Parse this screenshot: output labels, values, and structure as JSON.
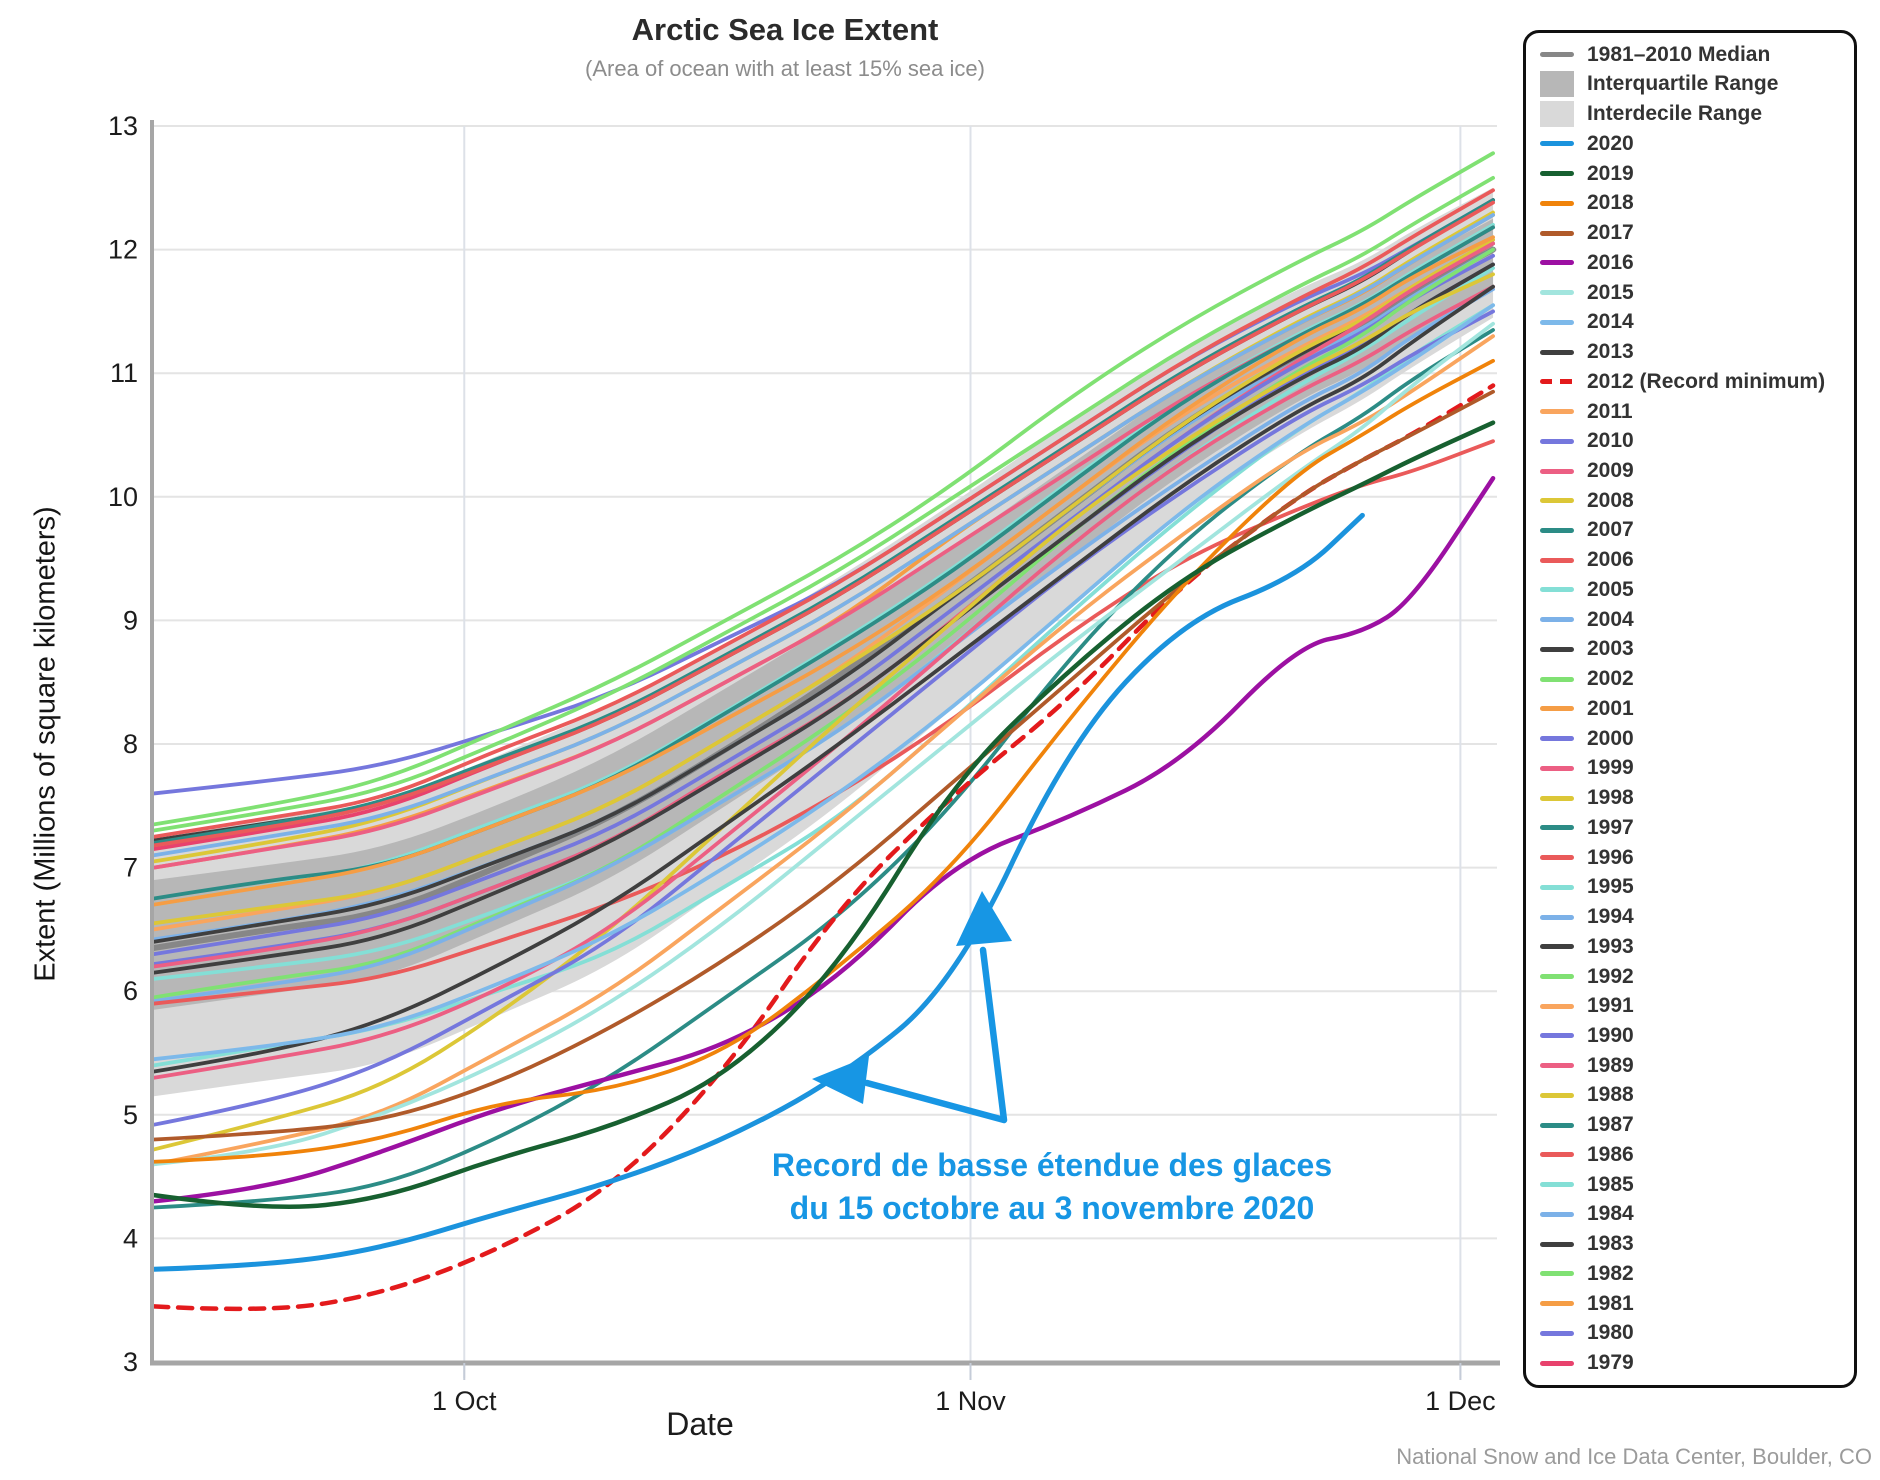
{
  "header": {
    "title": "Arctic Sea Ice Extent",
    "subtitle": "(Area of ocean with at least 15% sea ice)"
  },
  "axes": {
    "y_label": "Extent (Millions of square kilometers)",
    "x_label": "Date"
  },
  "footer": {
    "source": "National Snow and Ice Data Center, Boulder, CO"
  },
  "annotation": {
    "line1": "Record de basse étendue des glaces",
    "line2": "du 15 octobre au 3 novembre 2020",
    "color": "#1796e4"
  },
  "legend": {
    "header_items": [
      {
        "label": "1981–2010 Median",
        "swatch": "line",
        "color": "#878787"
      },
      {
        "label": "Interquartile Range",
        "swatch": "rect",
        "color": "#b7b7b7"
      },
      {
        "label": "Interdecile Range",
        "swatch": "rect",
        "color": "#d9d9d9"
      }
    ]
  },
  "chart_data": {
    "type": "line",
    "title": "Arctic Sea Ice Extent",
    "xlabel": "Date",
    "ylabel": "Extent (Millions of square kilometers)",
    "ylim": [
      3,
      13
    ],
    "y_ticks": [
      13,
      12,
      11,
      10,
      9,
      8,
      7,
      6,
      5,
      4,
      3
    ],
    "x_ticks": [
      {
        "label": "1 Oct",
        "day": 19
      },
      {
        "label": "1 Nov",
        "day": 50
      },
      {
        "label": "1 Dec",
        "day": 80
      }
    ],
    "x_unit": "days since 12 Sep",
    "days": [
      0,
      7,
      14,
      21,
      28,
      35,
      42,
      49,
      56,
      63,
      70,
      74,
      77,
      82
    ],
    "bands": {
      "interdecile": {
        "label": "Interdecile Range",
        "color": "#d9d9d9",
        "lo": [
          5.15,
          5.28,
          5.4,
          5.8,
          6.2,
          6.85,
          7.5,
          8.3,
          9.1,
          9.9,
          10.5,
          10.78,
          11.05,
          11.45
        ],
        "hi": [
          7.25,
          7.4,
          7.52,
          7.9,
          8.3,
          8.8,
          9.35,
          9.95,
          10.6,
          11.2,
          11.68,
          11.9,
          12.15,
          12.5
        ]
      },
      "interquartile": {
        "label": "Interquartile Range",
        "color": "#b7b7b7",
        "lo": [
          5.85,
          5.98,
          6.1,
          6.5,
          6.9,
          7.5,
          8.1,
          8.8,
          9.5,
          10.2,
          10.78,
          11.02,
          11.3,
          11.7
        ],
        "hi": [
          6.9,
          7.02,
          7.15,
          7.5,
          7.9,
          8.45,
          9.0,
          9.6,
          10.25,
          10.9,
          11.42,
          11.66,
          11.9,
          12.25
        ]
      }
    },
    "median": {
      "label": "1981–2010 Median",
      "color": "#878787",
      "width": 6,
      "values": [
        6.35,
        6.5,
        6.62,
        7.0,
        7.4,
        7.95,
        8.55,
        9.2,
        9.9,
        10.6,
        11.15,
        11.4,
        11.65,
        12.0
      ]
    },
    "series": [
      {
        "year": "2020",
        "label": "2020",
        "color": "#1b93dd",
        "width": 5,
        "values": [
          3.75,
          3.78,
          3.92,
          4.2,
          4.45,
          4.8,
          5.3,
          6.05,
          8.0,
          9.0,
          9.35,
          9.85,
          null,
          null
        ]
      },
      {
        "year": "2019",
        "label": "2019",
        "color": "#176030",
        "width": 4.5,
        "values": [
          4.35,
          4.22,
          4.32,
          4.65,
          4.9,
          5.3,
          6.2,
          7.7,
          8.6,
          9.35,
          9.85,
          10.1,
          10.3,
          10.6
        ]
      },
      {
        "year": "2018",
        "label": "2018",
        "color": "#f0830a",
        "values": [
          4.62,
          4.66,
          4.8,
          5.1,
          5.2,
          5.5,
          6.2,
          7.0,
          8.2,
          9.3,
          10.2,
          10.5,
          10.75,
          11.1
        ]
      },
      {
        "year": "2017",
        "label": "2017",
        "color": "#b05a2a",
        "values": [
          4.8,
          4.85,
          4.95,
          5.25,
          5.7,
          6.25,
          6.9,
          7.7,
          8.5,
          9.3,
          10.0,
          10.3,
          10.5,
          10.85
        ]
      },
      {
        "year": "2016",
        "label": "2016",
        "color": "#9c10a2",
        "width": 4.5,
        "values": [
          4.3,
          4.4,
          4.7,
          5.05,
          5.3,
          5.55,
          6.1,
          7.05,
          7.4,
          7.85,
          8.8,
          8.9,
          9.15,
          10.15
        ]
      },
      {
        "year": "2015",
        "label": "2015",
        "color": "#a2e5de",
        "values": [
          4.6,
          4.7,
          5.0,
          5.4,
          5.9,
          6.55,
          7.3,
          8.05,
          8.8,
          9.5,
          10.2,
          10.55,
          10.9,
          11.4
        ]
      },
      {
        "year": "2014",
        "label": "2014",
        "color": "#7db9ea",
        "values": [
          5.45,
          5.55,
          5.7,
          6.05,
          6.45,
          7.0,
          7.6,
          8.3,
          9.1,
          9.9,
          10.55,
          10.85,
          11.1,
          11.55
        ]
      },
      {
        "year": "2013",
        "label": "2013",
        "color": "#3f3f3f",
        "values": [
          5.35,
          5.5,
          5.75,
          6.2,
          6.7,
          7.35,
          8.0,
          8.7,
          9.4,
          10.1,
          10.7,
          10.95,
          11.25,
          11.7
        ]
      },
      {
        "year": "2012",
        "label": "2012 (Record minimum)",
        "color": "#e31a1c",
        "dash": "14 10",
        "width": 4.5,
        "values": [
          3.45,
          3.4,
          3.55,
          3.9,
          4.4,
          5.35,
          6.7,
          7.6,
          8.35,
          9.3,
          10.0,
          10.3,
          10.5,
          10.9
        ]
      },
      {
        "year": "2011",
        "label": "2011",
        "color": "#f9a55e",
        "values": [
          4.6,
          4.78,
          5.0,
          5.5,
          6.0,
          6.7,
          7.4,
          8.2,
          9.0,
          9.7,
          10.35,
          10.6,
          10.85,
          11.3
        ]
      },
      {
        "year": "2010",
        "label": "2010",
        "color": "#7577dd",
        "values": [
          4.92,
          5.1,
          5.4,
          5.9,
          6.4,
          7.15,
          7.9,
          8.65,
          9.4,
          10.05,
          10.65,
          10.9,
          11.15,
          11.5
        ]
      },
      {
        "year": "2009",
        "label": "2009",
        "color": "#ec5f83",
        "values": [
          5.3,
          5.45,
          5.62,
          6.0,
          6.5,
          7.25,
          8.0,
          8.8,
          9.6,
          10.3,
          10.85,
          11.1,
          11.35,
          11.7
        ]
      },
      {
        "year": "2008",
        "label": "2008",
        "color": "#dcc737",
        "values": [
          4.72,
          4.95,
          5.22,
          5.8,
          6.5,
          7.35,
          8.2,
          9.0,
          9.8,
          10.45,
          11.0,
          11.25,
          11.5,
          11.8
        ]
      },
      {
        "year": "2007",
        "label": "2007",
        "color": "#2c8c86",
        "values": [
          4.25,
          4.3,
          4.42,
          4.8,
          5.3,
          5.95,
          6.6,
          7.5,
          8.7,
          9.65,
          10.35,
          10.65,
          10.95,
          11.35
        ]
      },
      {
        "year": "2006",
        "label": "2006",
        "color": "#ea5a5a",
        "values": [
          5.9,
          6.0,
          6.1,
          6.4,
          6.7,
          7.1,
          7.6,
          8.2,
          8.9,
          9.5,
          9.9,
          10.1,
          10.2,
          10.45
        ]
      },
      {
        "year": "2005",
        "label": "2005",
        "color": "#84dfd6",
        "values": [
          5.4,
          5.55,
          5.7,
          6.0,
          6.3,
          6.85,
          7.4,
          8.2,
          9.05,
          9.85,
          10.55,
          10.85,
          11.15,
          11.55
        ]
      },
      {
        "year": "2004",
        "label": "2004",
        "color": "#7cb1e8",
        "values": [
          5.92,
          6.05,
          6.2,
          6.6,
          7.0,
          7.55,
          8.1,
          8.8,
          9.5,
          10.15,
          10.75,
          11.0,
          11.3,
          11.68
        ]
      },
      {
        "year": "2003",
        "label": "2003",
        "color": "#3f3f3f",
        "values": [
          6.15,
          6.28,
          6.42,
          6.8,
          7.2,
          7.75,
          8.3,
          9.0,
          9.7,
          10.4,
          10.95,
          11.2,
          11.5,
          11.88
        ]
      },
      {
        "year": "2002",
        "label": "2002",
        "color": "#80e173",
        "values": [
          5.95,
          6.1,
          6.22,
          6.62,
          7.0,
          7.6,
          8.2,
          8.9,
          9.7,
          10.42,
          11.02,
          11.3,
          11.6,
          12.0
        ]
      },
      {
        "year": "2001",
        "label": "2001",
        "color": "#f59d45",
        "values": [
          6.7,
          6.85,
          7.0,
          7.35,
          7.7,
          8.2,
          8.7,
          9.3,
          10.0,
          10.7,
          11.28,
          11.52,
          11.78,
          12.1
        ]
      },
      {
        "year": "2000",
        "label": "2000",
        "color": "#7577dd",
        "values": [
          6.3,
          6.45,
          6.6,
          6.95,
          7.3,
          7.85,
          8.4,
          9.1,
          9.8,
          10.5,
          11.08,
          11.32,
          11.6,
          11.95
        ]
      },
      {
        "year": "1999",
        "label": "1999",
        "color": "#ec5f83",
        "values": [
          6.2,
          6.33,
          6.5,
          6.85,
          7.2,
          7.78,
          8.3,
          9.0,
          9.8,
          10.5,
          11.1,
          11.4,
          11.68,
          12.05
        ]
      },
      {
        "year": "1998",
        "label": "1998",
        "color": "#dcc737",
        "values": [
          6.55,
          6.68,
          6.8,
          7.15,
          7.5,
          8.05,
          8.6,
          9.2,
          9.9,
          10.6,
          11.18,
          11.42,
          11.7,
          12.08
        ]
      },
      {
        "year": "1997",
        "label": "1997",
        "color": "#2c8c86",
        "values": [
          6.75,
          6.9,
          7.0,
          7.35,
          7.7,
          8.25,
          8.8,
          9.4,
          10.1,
          10.78,
          11.3,
          11.55,
          11.8,
          12.18
        ]
      },
      {
        "year": "1996",
        "label": "1996",
        "color": "#ea5a5a",
        "values": [
          7.18,
          7.32,
          7.5,
          7.85,
          8.2,
          8.7,
          9.2,
          9.8,
          10.4,
          11.0,
          11.5,
          11.75,
          12.0,
          12.38
        ]
      },
      {
        "year": "1995",
        "label": "1995",
        "color": "#84dfd6",
        "values": [
          6.1,
          6.2,
          6.32,
          6.65,
          7.0,
          7.55,
          8.1,
          8.8,
          9.6,
          10.3,
          10.9,
          11.18,
          11.45,
          11.85
        ]
      },
      {
        "year": "1994",
        "label": "1994",
        "color": "#7cb1e8",
        "values": [
          7.1,
          7.25,
          7.4,
          7.75,
          8.1,
          8.6,
          9.1,
          9.7,
          10.3,
          10.9,
          11.4,
          11.65,
          11.9,
          12.28
        ]
      },
      {
        "year": "1993",
        "label": "1993",
        "color": "#3f3f3f",
        "values": [
          6.4,
          6.55,
          6.7,
          7.05,
          7.4,
          7.95,
          8.5,
          9.2,
          9.9,
          10.6,
          11.15,
          11.4,
          11.68,
          12.05
        ]
      },
      {
        "year": "1992",
        "label": "1992",
        "color": "#80e173",
        "values": [
          7.3,
          7.45,
          7.62,
          8.0,
          8.4,
          8.9,
          9.4,
          10.0,
          10.6,
          11.2,
          11.7,
          11.95,
          12.2,
          12.58
        ]
      },
      {
        "year": "1991",
        "label": "1991",
        "color": "#f9a55e",
        "values": [
          6.5,
          6.65,
          6.8,
          7.15,
          7.5,
          8.05,
          8.6,
          9.3,
          10.0,
          10.68,
          11.2,
          11.45,
          11.7,
          12.08
        ]
      },
      {
        "year": "1990",
        "label": "1990",
        "color": "#7577dd",
        "values": [
          6.22,
          6.35,
          6.5,
          6.85,
          7.2,
          7.75,
          8.3,
          9.0,
          9.7,
          10.38,
          10.98,
          11.22,
          11.5,
          11.88
        ]
      },
      {
        "year": "1989",
        "label": "1989",
        "color": "#ec5f83",
        "values": [
          7.0,
          7.15,
          7.3,
          7.65,
          8.0,
          8.5,
          9.0,
          9.6,
          10.2,
          10.8,
          11.3,
          11.55,
          11.8,
          12.18
        ]
      },
      {
        "year": "1988",
        "label": "1988",
        "color": "#dcc737",
        "values": [
          7.05,
          7.2,
          7.38,
          7.75,
          8.1,
          8.6,
          9.1,
          9.7,
          10.3,
          10.9,
          11.42,
          11.66,
          11.92,
          12.3
        ]
      },
      {
        "year": "1987",
        "label": "1987",
        "color": "#2c8c86",
        "values": [
          7.2,
          7.35,
          7.52,
          7.88,
          8.22,
          8.72,
          9.22,
          9.82,
          10.42,
          11.02,
          11.52,
          11.76,
          12.02,
          12.4
        ]
      },
      {
        "year": "1986",
        "label": "1986",
        "color": "#ea5a5a",
        "values": [
          7.25,
          7.4,
          7.55,
          7.95,
          8.3,
          8.8,
          9.3,
          9.9,
          10.5,
          11.1,
          11.6,
          11.85,
          12.1,
          12.48
        ]
      },
      {
        "year": "1985",
        "label": "1985",
        "color": "#84dfd6",
        "values": [
          6.7,
          6.85,
          7.02,
          7.38,
          7.72,
          8.26,
          8.82,
          9.42,
          10.12,
          10.8,
          11.32,
          11.56,
          11.82,
          12.2
        ]
      },
      {
        "year": "1984",
        "label": "1984",
        "color": "#7cb1e8",
        "values": [
          6.42,
          6.55,
          6.72,
          7.05,
          7.4,
          7.95,
          8.5,
          9.2,
          9.9,
          10.58,
          11.1,
          11.35,
          11.62,
          12.0
        ]
      },
      {
        "year": "1983",
        "label": "1983",
        "color": "#3f3f3f",
        "values": [
          7.22,
          7.36,
          7.5,
          7.86,
          8.2,
          8.7,
          9.2,
          9.8,
          10.4,
          11.0,
          11.5,
          11.74,
          12.0,
          12.4
        ]
      },
      {
        "year": "1982",
        "label": "1982",
        "color": "#80e173",
        "values": [
          7.35,
          7.5,
          7.7,
          8.1,
          8.5,
          9.0,
          9.5,
          10.1,
          10.8,
          11.4,
          11.9,
          12.15,
          12.4,
          12.78
        ]
      },
      {
        "year": "1981",
        "label": "1981",
        "color": "#f59d45",
        "values": [
          7.0,
          7.15,
          7.32,
          7.66,
          8.0,
          8.5,
          9.0,
          9.7,
          10.3,
          10.9,
          11.4,
          11.64,
          11.9,
          12.28
        ]
      },
      {
        "year": "1980",
        "label": "1980",
        "color": "#7577dd",
        "values": [
          7.6,
          7.7,
          7.82,
          8.1,
          8.4,
          8.85,
          9.3,
          9.9,
          10.5,
          11.1,
          11.58,
          11.8,
          12.02,
          12.4
        ]
      },
      {
        "year": "1979",
        "label": "1979",
        "color": "#e8426d",
        "values": [
          7.15,
          7.3,
          7.46,
          7.85,
          8.2,
          8.7,
          9.2,
          9.8,
          10.4,
          11.0,
          11.5,
          11.75,
          12.0,
          12.4
        ]
      }
    ],
    "grid": true,
    "legend_position": "right"
  }
}
